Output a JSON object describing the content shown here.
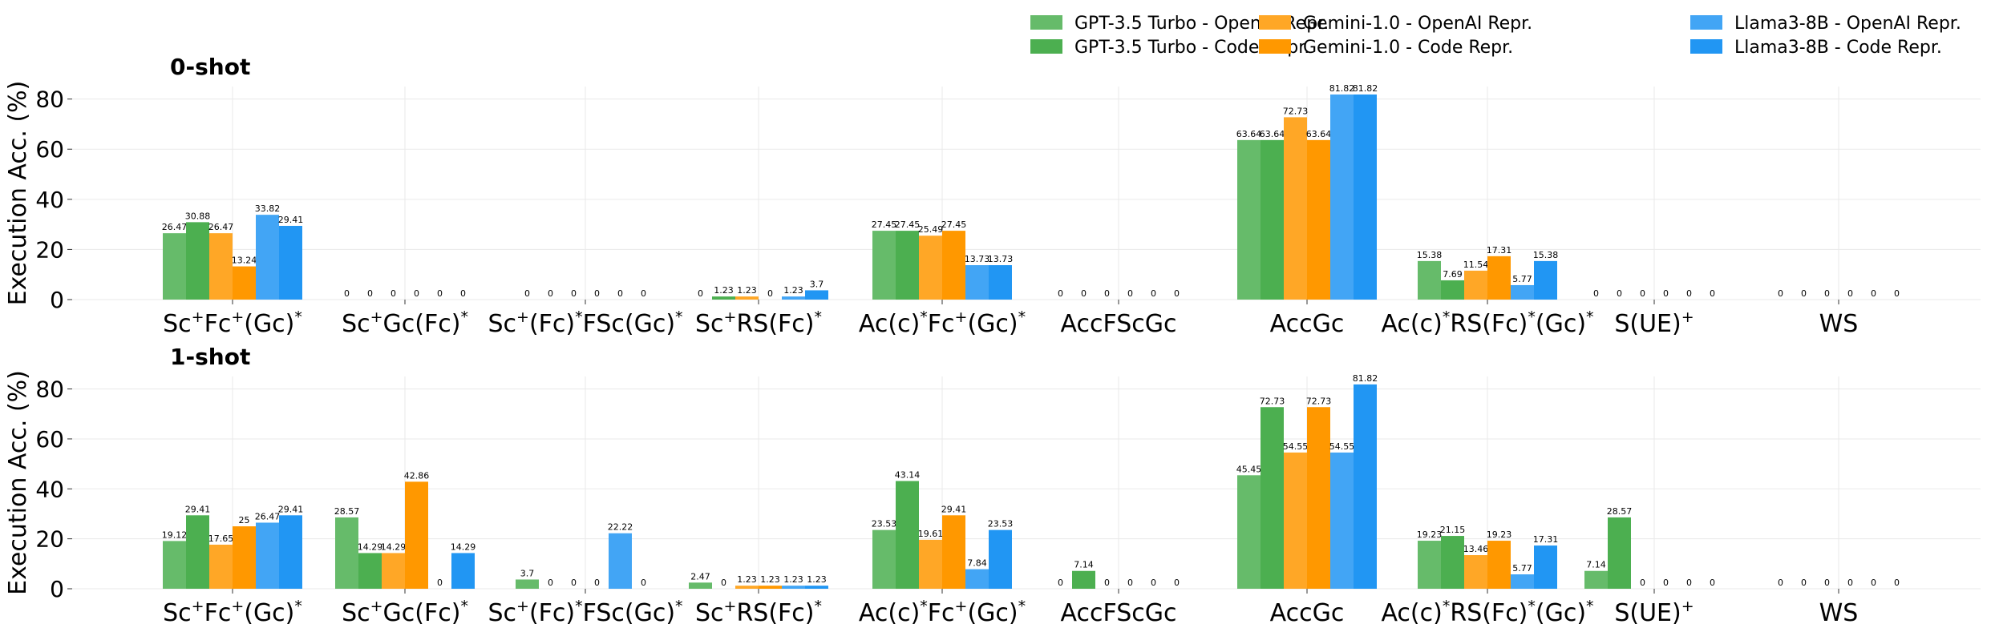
{
  "chart_data": {
    "type": "bar",
    "ylabel": "Execution Acc. (%)",
    "ylim": [
      0,
      85
    ],
    "yticks": [
      0,
      20,
      40,
      60,
      80
    ],
    "grid": true,
    "legend_position": "top-right",
    "categories": [
      {
        "base": "Sc",
        "segs": [
          [
            "+",
            "Fc"
          ],
          [
            "+",
            "(Gc)"
          ],
          [
            "*",
            ""
          ]
        ]
      },
      {
        "base": "Sc",
        "segs": [
          [
            "+",
            "Gc(Fc)"
          ],
          [
            "*",
            ""
          ]
        ]
      },
      {
        "base": "Sc",
        "segs": [
          [
            "+",
            "(Fc)"
          ],
          [
            "*",
            "FSc(Gc)"
          ],
          [
            "*",
            ""
          ]
        ]
      },
      {
        "base": "Sc",
        "segs": [
          [
            "+",
            "RS(Fc)"
          ],
          [
            "*",
            ""
          ]
        ]
      },
      {
        "base": "Ac(c)",
        "segs": [
          [
            "*",
            "Fc"
          ],
          [
            "+",
            "(Gc)"
          ],
          [
            "*",
            ""
          ]
        ]
      },
      {
        "base": "AccFScGc",
        "segs": []
      },
      {
        "base": "AccGc",
        "segs": []
      },
      {
        "base": "Ac(c)",
        "segs": [
          [
            "*",
            "RS(Fc)"
          ],
          [
            "*",
            "(Gc)"
          ],
          [
            "*",
            ""
          ]
        ]
      },
      {
        "base": "S(UE)",
        "segs": [
          [
            "+",
            ""
          ]
        ]
      },
      {
        "base": "WS",
        "segs": []
      }
    ],
    "category_labels": [
      "Sc+Fc+(Gc)*",
      "Sc+Gc(Fc)*",
      "Sc+(Fc)*FSc(Gc)*",
      "Sc+RS(Fc)*",
      "Ac(c)*Fc+(Gc)*",
      "AccFScGc",
      "AccGc",
      "Ac(c)*RS(Fc)*(Gc)*",
      "S(UE)+",
      "WS"
    ],
    "series": [
      {
        "name": "GPT-3.5 Turbo - OpenAI Repr.",
        "color": "#66bb6a"
      },
      {
        "name": "GPT-3.5 Turbo - Code Repr.",
        "color": "#4caf50"
      },
      {
        "name": "Gemini-1.0 - OpenAI Repr.",
        "color": "#ffa726"
      },
      {
        "name": "Gemini-1.0 - Code Repr.",
        "color": "#ff9800"
      },
      {
        "name": "Llama3-8B - OpenAI Repr.",
        "color": "#42a5f5"
      },
      {
        "name": "Llama3-8B - Code Repr.",
        "color": "#2196f3"
      }
    ],
    "panels": [
      {
        "title": "0-shot",
        "values": [
          [
            26.47,
            30.88,
            26.47,
            13.24,
            33.82,
            29.41
          ],
          [
            0.0,
            0.0,
            0.0,
            0.0,
            0.0,
            0.0
          ],
          [
            0.0,
            0.0,
            0.0,
            0.0,
            0.0,
            0.0
          ],
          [
            0.0,
            1.23,
            1.23,
            0.0,
            1.23,
            3.7
          ],
          [
            27.45,
            27.45,
            25.49,
            27.45,
            13.73,
            13.73
          ],
          [
            0.0,
            0.0,
            0.0,
            0.0,
            0.0,
            0.0
          ],
          [
            63.64,
            63.64,
            72.73,
            63.64,
            81.82,
            81.82
          ],
          [
            15.38,
            7.69,
            11.54,
            17.31,
            5.77,
            15.38
          ],
          [
            0.0,
            0.0,
            0.0,
            0.0,
            0.0,
            0.0
          ],
          [
            0.0,
            0.0,
            0.0,
            0.0,
            0.0,
            0.0
          ]
        ]
      },
      {
        "title": "1-shot",
        "values": [
          [
            19.12,
            29.41,
            17.65,
            25.0,
            26.47,
            29.41
          ],
          [
            28.57,
            14.29,
            14.29,
            42.86,
            0.0,
            14.29
          ],
          [
            3.7,
            0.0,
            0.0,
            0.0,
            22.22,
            0.0
          ],
          [
            2.47,
            0.0,
            1.23,
            1.23,
            1.23,
            1.23
          ],
          [
            23.53,
            43.14,
            19.61,
            29.41,
            7.84,
            23.53
          ],
          [
            0.0,
            7.14,
            0.0,
            0.0,
            0.0,
            0.0
          ],
          [
            45.45,
            72.73,
            54.55,
            72.73,
            54.55,
            81.82
          ],
          [
            19.23,
            21.15,
            13.46,
            19.23,
            5.77,
            17.31
          ],
          [
            7.14,
            28.57,
            0.0,
            0.0,
            0.0,
            0.0
          ],
          [
            0.0,
            0.0,
            0.0,
            0.0,
            0.0,
            0.0
          ]
        ]
      }
    ]
  }
}
